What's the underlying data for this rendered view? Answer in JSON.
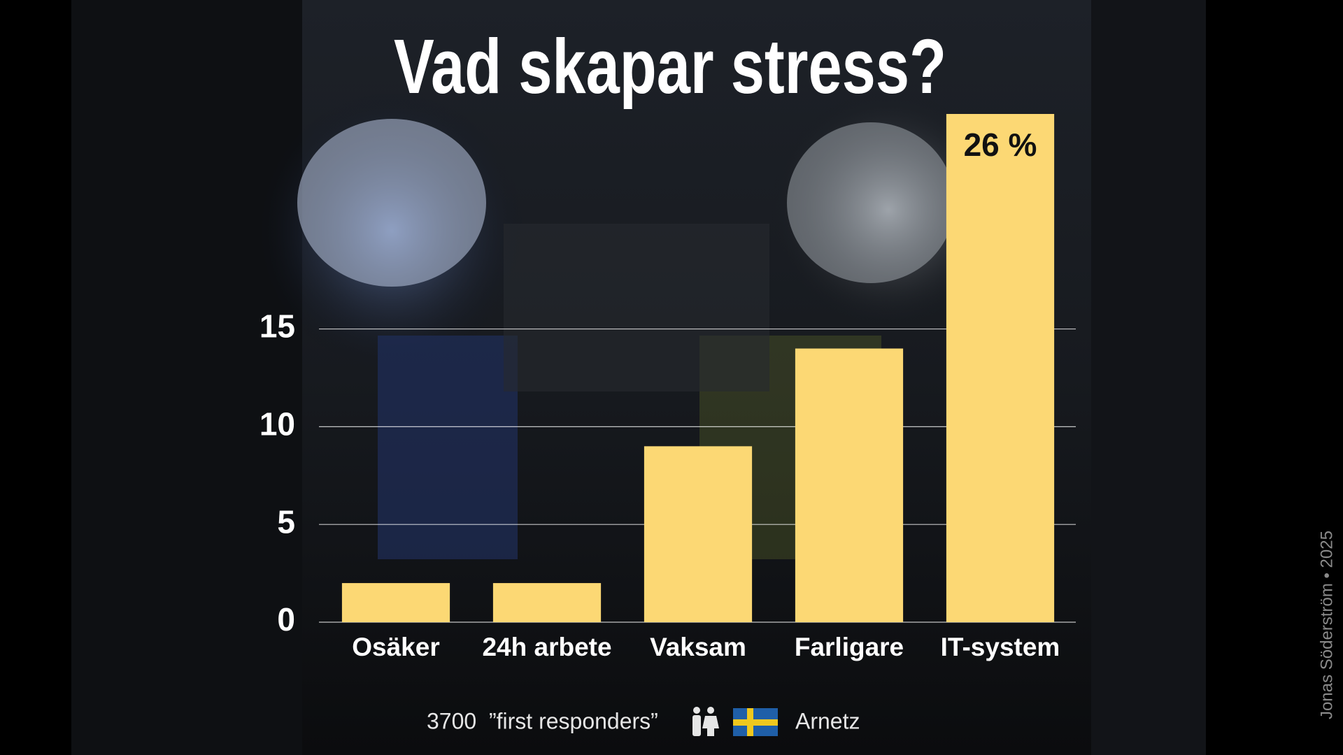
{
  "chart_data": {
    "type": "bar",
    "title": "Vad skapar stress?",
    "categories": [
      "Osäker",
      "24h arbete",
      "Vaksam",
      "Farligare",
      "IT-system"
    ],
    "values": [
      2,
      2,
      9,
      14,
      26
    ],
    "value_labels": [
      null,
      null,
      null,
      null,
      "26 %"
    ],
    "color": "#fcd874",
    "ylim": [
      0,
      26
    ],
    "yticks": [
      0,
      5,
      10,
      15
    ],
    "grid": true,
    "note": "3700  ”first responders”",
    "source": "Arnetz",
    "credit": "Jonas Söderström • 2025"
  }
}
